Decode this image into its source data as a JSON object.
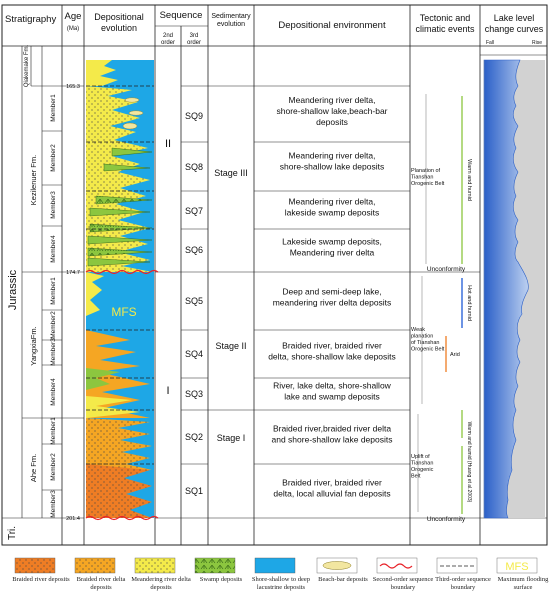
{
  "headers": {
    "stratigraphy": "Stratigraphy",
    "age": "Age",
    "age_unit": "(Ma)",
    "depositional_evolution": "Depositional evolution",
    "sequence": "Sequence",
    "second_order": "2nd order",
    "third_order": "3rd order",
    "sedimentary_evolution": "Sedimentary evolution",
    "depositional_environment": "Depositional environment",
    "tectonic": "Tectonic and climatic events",
    "lake_level": "Lake level change curves",
    "fall": "Fall",
    "rise": "Rise"
  },
  "systems": {
    "jurassic": "Jurassic",
    "triassic": "Tri."
  },
  "formations": [
    {
      "name": "Qiakemake Fm.",
      "members": []
    },
    {
      "name": "Kezilenuer Fm.",
      "members": [
        "Member1",
        "Member2",
        "Member3",
        "Member4"
      ]
    },
    {
      "name": "YangxiaFm.",
      "members": [
        "Member1",
        "Member2",
        "Member3",
        "Member4"
      ]
    },
    {
      "name": "Ahe Fm.",
      "members": [
        "Member1",
        "Member2",
        "Member3"
      ]
    }
  ],
  "ages": [
    "165.3",
    "174.7",
    "201.4"
  ],
  "mfs_label": "MFS",
  "second_order": [
    "II",
    "I"
  ],
  "third_order": [
    "SQ9",
    "SQ8",
    "SQ7",
    "SQ6",
    "SQ5",
    "SQ4",
    "SQ3",
    "SQ2",
    "SQ1"
  ],
  "stages": [
    "Stage III",
    "Stage II",
    "Stage I"
  ],
  "environments": [
    [
      "Meandering river delta,",
      "shore-shallow lake,beach-bar",
      "deposits"
    ],
    [
      "Meandering river delta,",
      "shore-shallow lake deposits"
    ],
    [
      "Meandering river delta,",
      "lakeside swamp  deposits"
    ],
    [
      "Lakeside swamp  deposits,",
      "Meandering river delta"
    ],
    [
      "Deep and semi-deep lake,",
      "meandering river delta  deposits"
    ],
    [
      "Braided river, braided river",
      "delta, shore-shallow lake deposits"
    ],
    [
      "River, lake delta, shore-shallow",
      "lake and swamp deposits"
    ],
    [
      "Braided river,braided river delta",
      "and shore-shallow lake deposits"
    ],
    [
      "Braided river, braided river",
      "delta, local alluvial fan deposits"
    ]
  ],
  "tectonic": {
    "planation": [
      "Planation of",
      "Tianshan",
      "Orogenic Belt"
    ],
    "warm_humid": "Warm and humid",
    "unconformity_upper": "Unconformity",
    "weak_planation": [
      "Weak",
      "planation",
      "of Tianshan",
      "Orogenic Belt"
    ],
    "hot_humid": "Hot and humid",
    "arid": "Arid",
    "uplift": [
      "Uplift of",
      "Tianshan",
      "Orogenic",
      "Belt"
    ],
    "warm_humid_ref": "Warm and humid (Huang et al.2003)",
    "unconformity_lower": "Unconformity"
  },
  "colors": {
    "braided_river": "#ef7d24",
    "braided_delta": "#f5a623",
    "meandering_delta": "#f4ea4a",
    "swamp": "#8cc63f",
    "lacustrine": "#1ea7e6",
    "beach_bar": "#f2e6a0",
    "second_order_boundary": "#e8232a",
    "mfs_text": "#f4ea4a",
    "lake_curve": "#2a5fc8",
    "warm_line": "#8cc63f",
    "hot_line": "#1e5bd6",
    "arid_line": "#ef7d24"
  },
  "legend": [
    {
      "key": "braided_river",
      "label": "Braided river deposits",
      "icon": "braided-river-swatch"
    },
    {
      "key": "braided_delta",
      "label": "Braided river delta deposits",
      "icon": "braided-delta-swatch"
    },
    {
      "key": "meandering_delta",
      "label": "Meandering river delta deposits",
      "icon": "meandering-delta-swatch"
    },
    {
      "key": "swamp",
      "label": "Swamp deposits",
      "icon": "swamp-swatch"
    },
    {
      "key": "lacustrine",
      "label": "Shore-shallow to deep lacustrine deposits",
      "icon": "lacustrine-swatch"
    },
    {
      "key": "beach_bar",
      "label": "Beach-bar deposits",
      "icon": "beach-bar-swatch"
    },
    {
      "key": "second_boundary",
      "label": "Second-order sequence boundary",
      "icon": "wavy-line-swatch"
    },
    {
      "key": "third_boundary",
      "label": "Third-order sequence boundary",
      "icon": "dashed-line-swatch"
    },
    {
      "key": "mfs",
      "label": "Maximum flooding surface",
      "icon": "mfs-swatch"
    }
  ]
}
